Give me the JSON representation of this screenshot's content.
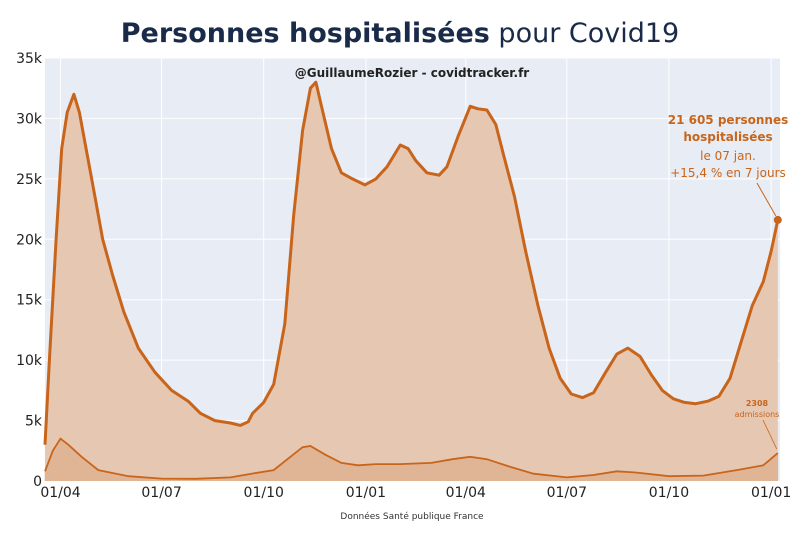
{
  "title_bold": "Personnes hospitalisées",
  "title_rest": " pour Covid19",
  "credit": "@GuillaumeRozier - covidtracker.fr",
  "source": "Données Santé publique France",
  "annotation": {
    "line1": "21 605 personnes",
    "line2": "hospitalisées",
    "line3": "le 07 jan.",
    "line4": "+15,4 % en 7 jours"
  },
  "admissions_annotation": {
    "value": "2308",
    "label": "admissions"
  },
  "colors": {
    "line": "#c8651b",
    "area": "#e6c7b1",
    "plot_bg": "#e7ecf5",
    "text_dark": "#1a2b4a"
  },
  "chart_data": {
    "type": "area",
    "x_axis": {
      "ticks": [
        "01/04",
        "01/07",
        "01/10",
        "01/01",
        "01/04",
        "01/07",
        "01/10",
        "01/01"
      ],
      "tick_dates": [
        "2020-04-01",
        "2020-07-01",
        "2020-10-01",
        "2021-01-01",
        "2021-04-01",
        "2021-07-01",
        "2021-10-01",
        "2022-01-01"
      ],
      "range": [
        "2020-03-18",
        "2022-01-09"
      ]
    },
    "y_axis": {
      "ticks": [
        "0",
        "5k",
        "10k",
        "15k",
        "20k",
        "25k",
        "30k",
        "35k"
      ],
      "tick_values": [
        0,
        5000,
        10000,
        15000,
        20000,
        25000,
        30000,
        35000
      ],
      "range": [
        0,
        35000
      ]
    },
    "grid": true,
    "series": [
      {
        "name": "Personnes hospitalisées",
        "points": [
          [
            "2020-03-18",
            3000
          ],
          [
            "2020-03-22",
            10000
          ],
          [
            "2020-03-28",
            20000
          ],
          [
            "2020-04-02",
            27500
          ],
          [
            "2020-04-07",
            30500
          ],
          [
            "2020-04-13",
            32000
          ],
          [
            "2020-04-18",
            30500
          ],
          [
            "2020-04-25",
            27000
          ],
          [
            "2020-05-01",
            24000
          ],
          [
            "2020-05-09",
            20000
          ],
          [
            "2020-05-18",
            17000
          ],
          [
            "2020-05-28",
            14000
          ],
          [
            "2020-06-10",
            11000
          ],
          [
            "2020-06-25",
            9000
          ],
          [
            "2020-07-10",
            7500
          ],
          [
            "2020-07-25",
            6600
          ],
          [
            "2020-08-05",
            5600
          ],
          [
            "2020-08-18",
            5000
          ],
          [
            "2020-09-01",
            4800
          ],
          [
            "2020-09-10",
            4600
          ],
          [
            "2020-09-17",
            4900
          ],
          [
            "2020-09-21",
            5600
          ],
          [
            "2020-10-01",
            6500
          ],
          [
            "2020-10-10",
            8000
          ],
          [
            "2020-10-20",
            13000
          ],
          [
            "2020-10-28",
            22000
          ],
          [
            "2020-11-05",
            29000
          ],
          [
            "2020-11-12",
            32500
          ],
          [
            "2020-11-17",
            33000
          ],
          [
            "2020-11-22",
            31000
          ],
          [
            "2020-12-01",
            27500
          ],
          [
            "2020-12-10",
            25500
          ],
          [
            "2020-12-20",
            25000
          ],
          [
            "2020-12-31",
            24500
          ],
          [
            "2021-01-10",
            25000
          ],
          [
            "2021-01-20",
            26000
          ],
          [
            "2021-02-01",
            27800
          ],
          [
            "2021-02-08",
            27500
          ],
          [
            "2021-02-15",
            26500
          ],
          [
            "2021-02-25",
            25500
          ],
          [
            "2021-03-08",
            25300
          ],
          [
            "2021-03-15",
            26000
          ],
          [
            "2021-03-25",
            28500
          ],
          [
            "2021-04-05",
            31000
          ],
          [
            "2021-04-12",
            30800
          ],
          [
            "2021-04-20",
            30700
          ],
          [
            "2021-04-28",
            29500
          ],
          [
            "2021-05-05",
            27000
          ],
          [
            "2021-05-15",
            23500
          ],
          [
            "2021-05-25",
            19000
          ],
          [
            "2021-06-05",
            14500
          ],
          [
            "2021-06-15",
            11000
          ],
          [
            "2021-06-25",
            8500
          ],
          [
            "2021-07-05",
            7200
          ],
          [
            "2021-07-15",
            6900
          ],
          [
            "2021-07-25",
            7300
          ],
          [
            "2021-08-05",
            9000
          ],
          [
            "2021-08-15",
            10500
          ],
          [
            "2021-08-25",
            11000
          ],
          [
            "2021-09-05",
            10300
          ],
          [
            "2021-09-15",
            8800
          ],
          [
            "2021-09-25",
            7500
          ],
          [
            "2021-10-05",
            6800
          ],
          [
            "2021-10-15",
            6500
          ],
          [
            "2021-10-25",
            6400
          ],
          [
            "2021-11-05",
            6600
          ],
          [
            "2021-11-15",
            7000
          ],
          [
            "2021-11-25",
            8500
          ],
          [
            "2021-12-05",
            11500
          ],
          [
            "2021-12-15",
            14500
          ],
          [
            "2021-12-25",
            16500
          ],
          [
            "2022-01-01",
            19000
          ],
          [
            "2022-01-07",
            21605
          ]
        ]
      },
      {
        "name": "admissions",
        "points": [
          [
            "2020-03-18",
            800
          ],
          [
            "2020-03-25",
            2500
          ],
          [
            "2020-04-01",
            3500
          ],
          [
            "2020-04-08",
            3000
          ],
          [
            "2020-04-20",
            2000
          ],
          [
            "2020-05-05",
            900
          ],
          [
            "2020-06-01",
            400
          ],
          [
            "2020-07-01",
            200
          ],
          [
            "2020-08-01",
            180
          ],
          [
            "2020-09-01",
            300
          ],
          [
            "2020-09-20",
            600
          ],
          [
            "2020-10-10",
            900
          ],
          [
            "2020-10-25",
            2000
          ],
          [
            "2020-11-05",
            2800
          ],
          [
            "2020-11-12",
            2900
          ],
          [
            "2020-11-25",
            2200
          ],
          [
            "2020-12-10",
            1500
          ],
          [
            "2020-12-25",
            1300
          ],
          [
            "2021-01-10",
            1400
          ],
          [
            "2021-02-01",
            1400
          ],
          [
            "2021-03-01",
            1500
          ],
          [
            "2021-03-20",
            1800
          ],
          [
            "2021-04-05",
            2000
          ],
          [
            "2021-04-20",
            1800
          ],
          [
            "2021-05-10",
            1200
          ],
          [
            "2021-06-01",
            600
          ],
          [
            "2021-07-01",
            300
          ],
          [
            "2021-07-25",
            500
          ],
          [
            "2021-08-15",
            800
          ],
          [
            "2021-09-01",
            700
          ],
          [
            "2021-10-01",
            400
          ],
          [
            "2021-11-01",
            450
          ],
          [
            "2021-12-01",
            900
          ],
          [
            "2021-12-25",
            1300
          ],
          [
            "2022-01-07",
            2308
          ]
        ]
      }
    ],
    "annotations": [
      {
        "text": "21 605 personnes hospitalisées le 07 jan. +15,4 % en 7 jours",
        "x": "2022-01-07",
        "y": 21605
      },
      {
        "text": "2308 admissions",
        "x": "2022-01-07",
        "y": 2308
      }
    ]
  }
}
